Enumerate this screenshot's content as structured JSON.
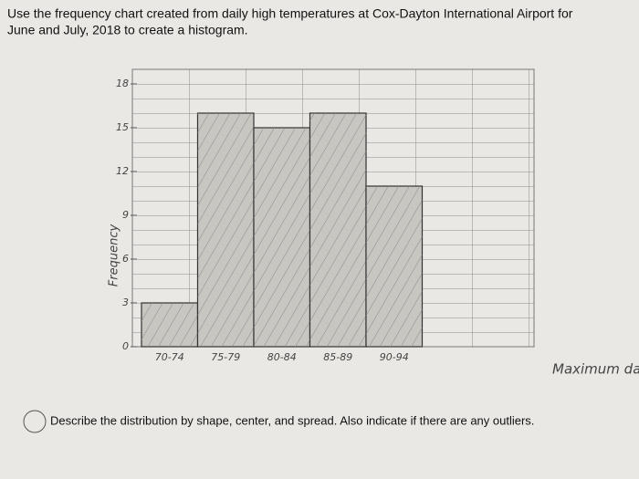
{
  "header": {
    "line1": "Use the frequency chart created from daily high temperatures at Cox-Dayton International Airport for",
    "line2": "June and July, 2018 to create a histogram."
  },
  "chart_data": {
    "type": "histogram",
    "categories": [
      "70-74",
      "75-79",
      "80-84",
      "85-89",
      "90-94"
    ],
    "values": [
      3,
      16,
      15,
      16,
      11
    ],
    "ylim": [
      0,
      18
    ],
    "yticks": [
      0,
      3,
      6,
      9,
      12,
      15,
      18
    ],
    "y_label": "Frequency",
    "x_label": "Maximum daily Te",
    "color": "#c8c6c1"
  },
  "question": "Describe the distribution by shape, center, and spread. Also indicate if there are any outliers."
}
